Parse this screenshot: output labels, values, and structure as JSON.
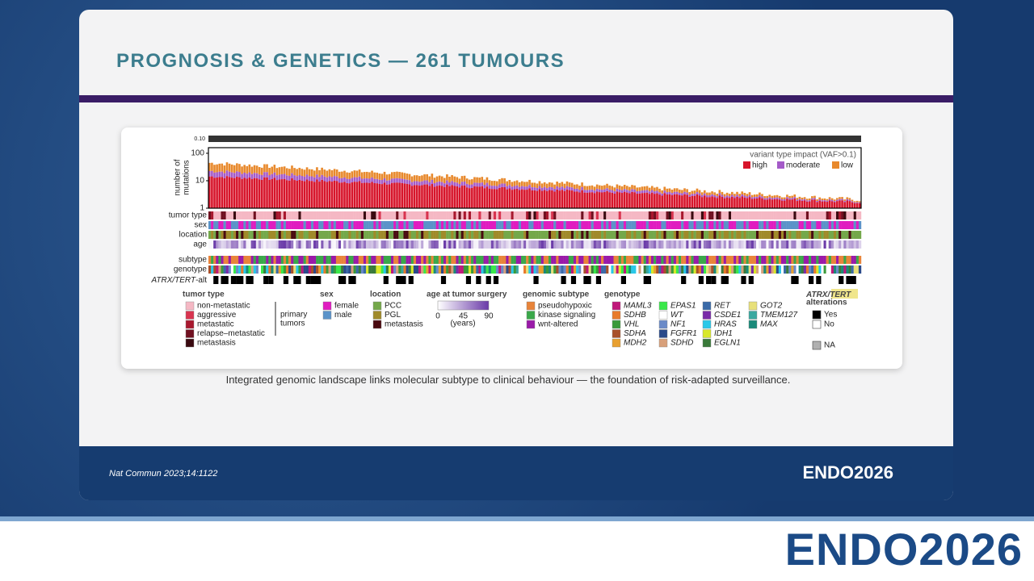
{
  "header": {
    "title": "PROGNOSIS & GENETICS — 261 TUMOURS"
  },
  "figure": {
    "top_strip_tick": {
      "value": 0.1,
      "label": "0.10"
    },
    "y_axis_label": [
      "number of",
      "mutations"
    ],
    "ylim": [
      1,
      160
    ],
    "yticks": [
      1,
      10,
      100
    ],
    "log_scale": true,
    "impact_legend": {
      "title": "variant type impact (VAF>0.1)",
      "items": [
        {
          "name": "high",
          "color": "#d7152b"
        },
        {
          "name": "moderate",
          "color": "#a45ac8"
        },
        {
          "name": "low",
          "color": "#e8892c"
        }
      ]
    },
    "tracks": [
      "tumor type",
      "sex",
      "location",
      "age",
      "subtype",
      "genotype"
    ],
    "atrx_track": [
      "ATRX/",
      "TERT",
      "-alt"
    ],
    "legends": {
      "tumor_type": {
        "title": "tumor type",
        "items": [
          {
            "name": "non-metastatic",
            "color": "#f5b8c4"
          },
          {
            "name": "aggressive",
            "color": "#d8344f"
          },
          {
            "name": "metastatic",
            "color": "#a8182e"
          },
          {
            "name": "relapse–metastatic",
            "color": "#701020"
          },
          {
            "name": "metastasis",
            "color": "#3a0a10"
          }
        ],
        "bracket_label": [
          "primary",
          "tumors"
        ]
      },
      "sex": {
        "title": "sex",
        "items": [
          {
            "name": "female",
            "color": "#e01cc0"
          },
          {
            "name": "male",
            "color": "#5b93c9"
          }
        ]
      },
      "location": {
        "title": "location",
        "items": [
          {
            "name": "PCC",
            "color": "#74a84a"
          },
          {
            "name": "PGL",
            "color": "#a08a2a"
          },
          {
            "name": "metastasis",
            "color": "#4a0a10"
          }
        ]
      },
      "age": {
        "title": "age at tumor surgery",
        "ticks": [
          0,
          45,
          90
        ],
        "unit": "(years)",
        "colors": [
          "#ffffff",
          "#6a3aa8"
        ]
      },
      "genomic_subtype": {
        "title": "genomic subtype",
        "items": [
          {
            "name": "pseudohypoxic",
            "color": "#e8843a"
          },
          {
            "name": "kinase signaling",
            "color": "#3aa84a"
          },
          {
            "name": "wnt-altered",
            "color": "#9a1aa8"
          }
        ]
      },
      "genotype": {
        "title": "genotype",
        "columns": [
          [
            {
              "name": "MAML3",
              "color": "#c0187a"
            },
            {
              "name": "SDHB",
              "color": "#e87a2a"
            },
            {
              "name": "VHL",
              "color": "#3a9a3a"
            },
            {
              "name": "SDHA",
              "color": "#a8502a"
            },
            {
              "name": "MDH2",
              "color": "#e8a030"
            }
          ],
          [
            {
              "name": "EPAS1",
              "color": "#3ae84a"
            },
            {
              "name": "WT",
              "color": "#ffffff"
            },
            {
              "name": "NF1",
              "color": "#6a8ac8"
            },
            {
              "name": "FGFR1",
              "color": "#2a4a8a"
            },
            {
              "name": "SDHD",
              "color": "#d8a07a"
            }
          ],
          [
            {
              "name": "RET",
              "color": "#3a6aa8"
            },
            {
              "name": "CSDE1",
              "color": "#7a2aa8"
            },
            {
              "name": "HRAS",
              "color": "#2ac8e8"
            },
            {
              "name": "IDH1",
              "color": "#d8e82a"
            },
            {
              "name": "EGLN1",
              "color": "#3a7a3a"
            }
          ],
          [
            {
              "name": "GOT2",
              "color": "#e8e07a"
            },
            {
              "name": "TMEM127",
              "color": "#3aa8a0"
            },
            {
              "name": "MAX",
              "color": "#1a8a7a"
            }
          ]
        ]
      },
      "atrx": {
        "title": [
          "ATRX/",
          "TERT",
          "alterations"
        ],
        "items": [
          {
            "name": "Yes",
            "color": "#000000"
          },
          {
            "name": "No",
            "color": "#ffffff"
          },
          {
            "name": "NA",
            "color": "#b0b0b0"
          }
        ]
      }
    }
  },
  "caption": "Integrated genomic landscape links molecular subtype to clinical behaviour — the foundation of risk-adapted surveillance.",
  "footer": {
    "citation": "Nat Commun 2023;14:1122",
    "logo": "ENDO2026"
  },
  "bottom_logo": "ENDO2026"
}
